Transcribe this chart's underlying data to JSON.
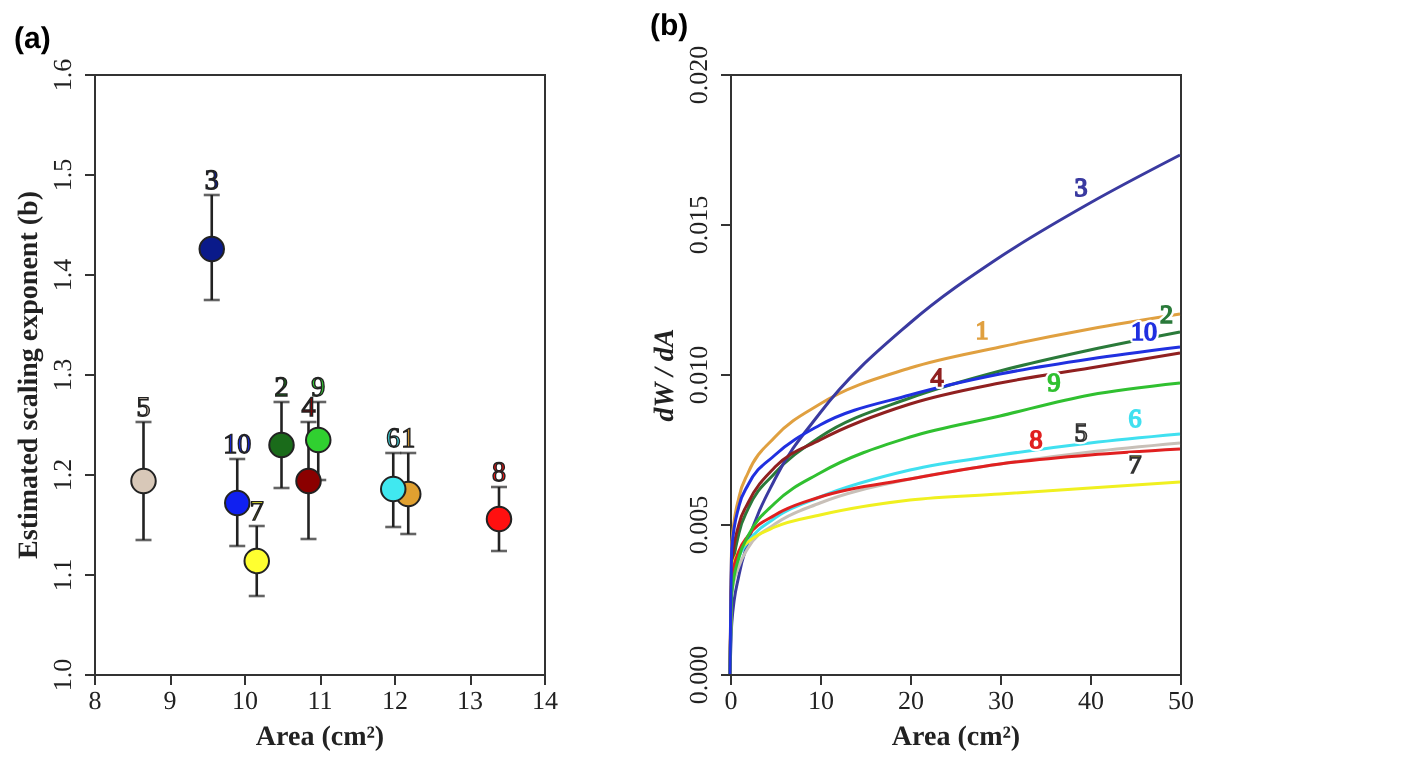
{
  "chart_data": [
    {
      "type": "scatter",
      "title": "(a)",
      "xlabel": "Area (cm²)",
      "ylabel": "Estimated scaling exponent (b)",
      "xlim": [
        8,
        14
      ],
      "xticks": [
        8,
        9,
        10,
        11,
        12,
        13,
        14
      ],
      "ylim": [
        1.0,
        1.6
      ],
      "yticks": [
        {
          "value": 1.0,
          "label": "1.0"
        },
        1.1,
        1.2,
        1.3,
        1.4,
        1.5,
        1.6
      ],
      "grid": false,
      "marker": "circle",
      "series": [
        {
          "name": "1",
          "color": "#e0a030",
          "x": [
            12.19
          ],
          "values": [
            1.18
          ],
          "errors": [
            [
              1.14,
              1.221
            ]
          ]
        },
        {
          "name": "2",
          "color": "#1a6b1a",
          "x": [
            10.5
          ],
          "values": [
            1.229
          ],
          "errors": [
            [
              1.186,
              1.272
            ]
          ]
        },
        {
          "name": "3",
          "color": "#0a1a8a",
          "x": [
            9.57
          ],
          "values": [
            1.425
          ],
          "errors": [
            [
              1.374,
              1.479
            ]
          ]
        },
        {
          "name": "4",
          "color": "#8b0000",
          "x": [
            10.86
          ],
          "values": [
            1.193
          ],
          "errors": [
            [
              1.135,
              1.252
            ]
          ]
        },
        {
          "name": "5",
          "color": "#d8c8b8",
          "x": [
            8.66
          ],
          "values": [
            1.193
          ],
          "errors": [
            [
              1.134,
              1.252
            ]
          ]
        },
        {
          "name": "6",
          "color": "#40e8f0",
          "x": [
            11.99
          ],
          "values": [
            1.185
          ],
          "errors": [
            [
              1.147,
              1.221
            ]
          ]
        },
        {
          "name": "7",
          "color": "#ffff30",
          "x": [
            10.17
          ],
          "values": [
            1.113
          ],
          "errors": [
            [
              1.078,
              1.148
            ]
          ]
        },
        {
          "name": "8",
          "color": "#ff1010",
          "x": [
            13.4
          ],
          "values": [
            1.155
          ],
          "errors": [
            [
              1.123,
              1.187
            ]
          ]
        },
        {
          "name": "9",
          "color": "#30d030",
          "x": [
            10.99
          ],
          "values": [
            1.234
          ],
          "errors": [
            [
              1.194,
              1.272
            ]
          ]
        },
        {
          "name": "10",
          "color": "#1020f0",
          "x": [
            9.91
          ],
          "values": [
            1.171
          ],
          "errors": [
            [
              1.128,
              1.215
            ]
          ]
        }
      ]
    },
    {
      "type": "line",
      "title": "(b)",
      "xlabel": "Area (cm²)",
      "ylabel": "dW / dA",
      "xlim": [
        0,
        50
      ],
      "xticks": [
        0,
        10,
        20,
        30,
        40,
        50
      ],
      "ylim": [
        0,
        0.02
      ],
      "yticks": [
        {
          "value": 0,
          "label": "0.000"
        },
        {
          "value": 0.005,
          "label": "0.005"
        },
        {
          "value": 0.01,
          "label": "0.010"
        },
        {
          "value": 0.015,
          "label": "0.015"
        },
        {
          "value": 0.02,
          "label": "0.020"
        }
      ],
      "grid": false,
      "line_style": "solid",
      "x": [
        0,
        0.2,
        1,
        2,
        5,
        10,
        20,
        30,
        40,
        50
      ],
      "series": [
        {
          "name": "1",
          "color": "#e0a040",
          "values": [
            0,
            0.0044,
            0.0059,
            0.0067,
            0.0079,
            0.009,
            0.0102,
            0.0109,
            0.0115,
            0.012
          ]
        },
        {
          "name": "2",
          "color": "#2a7a3a",
          "values": [
            0,
            0.0032,
            0.0047,
            0.0055,
            0.0067,
            0.0079,
            0.0092,
            0.0101,
            0.0108,
            0.0114
          ]
        },
        {
          "name": "3",
          "color": "#3a3aa0",
          "values": [
            0,
            0.0017,
            0.0033,
            0.0044,
            0.0065,
            0.0087,
            0.0117,
            0.0139,
            0.0157,
            0.0173
          ]
        },
        {
          "name": "4",
          "color": "#902020",
          "values": [
            0,
            0.0037,
            0.005,
            0.0057,
            0.0069,
            0.0078,
            0.009,
            0.0097,
            0.0102,
            0.0107
          ]
        },
        {
          "name": "5",
          "color": "#c8c0b8",
          "values": [
            0,
            0.0027,
            0.0036,
            0.0042,
            0.005,
            0.0057,
            0.0065,
            0.007,
            0.0074,
            0.0077
          ]
        },
        {
          "name": "6",
          "color": "#40e0f0",
          "values": [
            0,
            0.0029,
            0.0039,
            0.0044,
            0.0052,
            0.0059,
            0.0068,
            0.0073,
            0.0077,
            0.008
          ]
        },
        {
          "name": "7",
          "color": "#f0f020",
          "values": [
            0,
            0.0034,
            0.0041,
            0.0044,
            0.0049,
            0.0053,
            0.0058,
            0.006,
            0.0062,
            0.0064
          ]
        },
        {
          "name": "8",
          "color": "#e02020",
          "values": [
            0,
            0.0032,
            0.0041,
            0.0046,
            0.0053,
            0.0059,
            0.0065,
            0.007,
            0.0073,
            0.0075
          ]
        },
        {
          "name": "9",
          "color": "#30c030",
          "values": [
            0,
            0.0027,
            0.0039,
            0.0046,
            0.0057,
            0.0067,
            0.0079,
            0.0086,
            0.0093,
            0.0097
          ]
        },
        {
          "name": "10",
          "color": "#2030e0",
          "values": [
            0,
            0.0042,
            0.0056,
            0.0063,
            0.0073,
            0.0083,
            0.0093,
            0.01,
            0.0105,
            0.0109
          ]
        }
      ]
    }
  ]
}
